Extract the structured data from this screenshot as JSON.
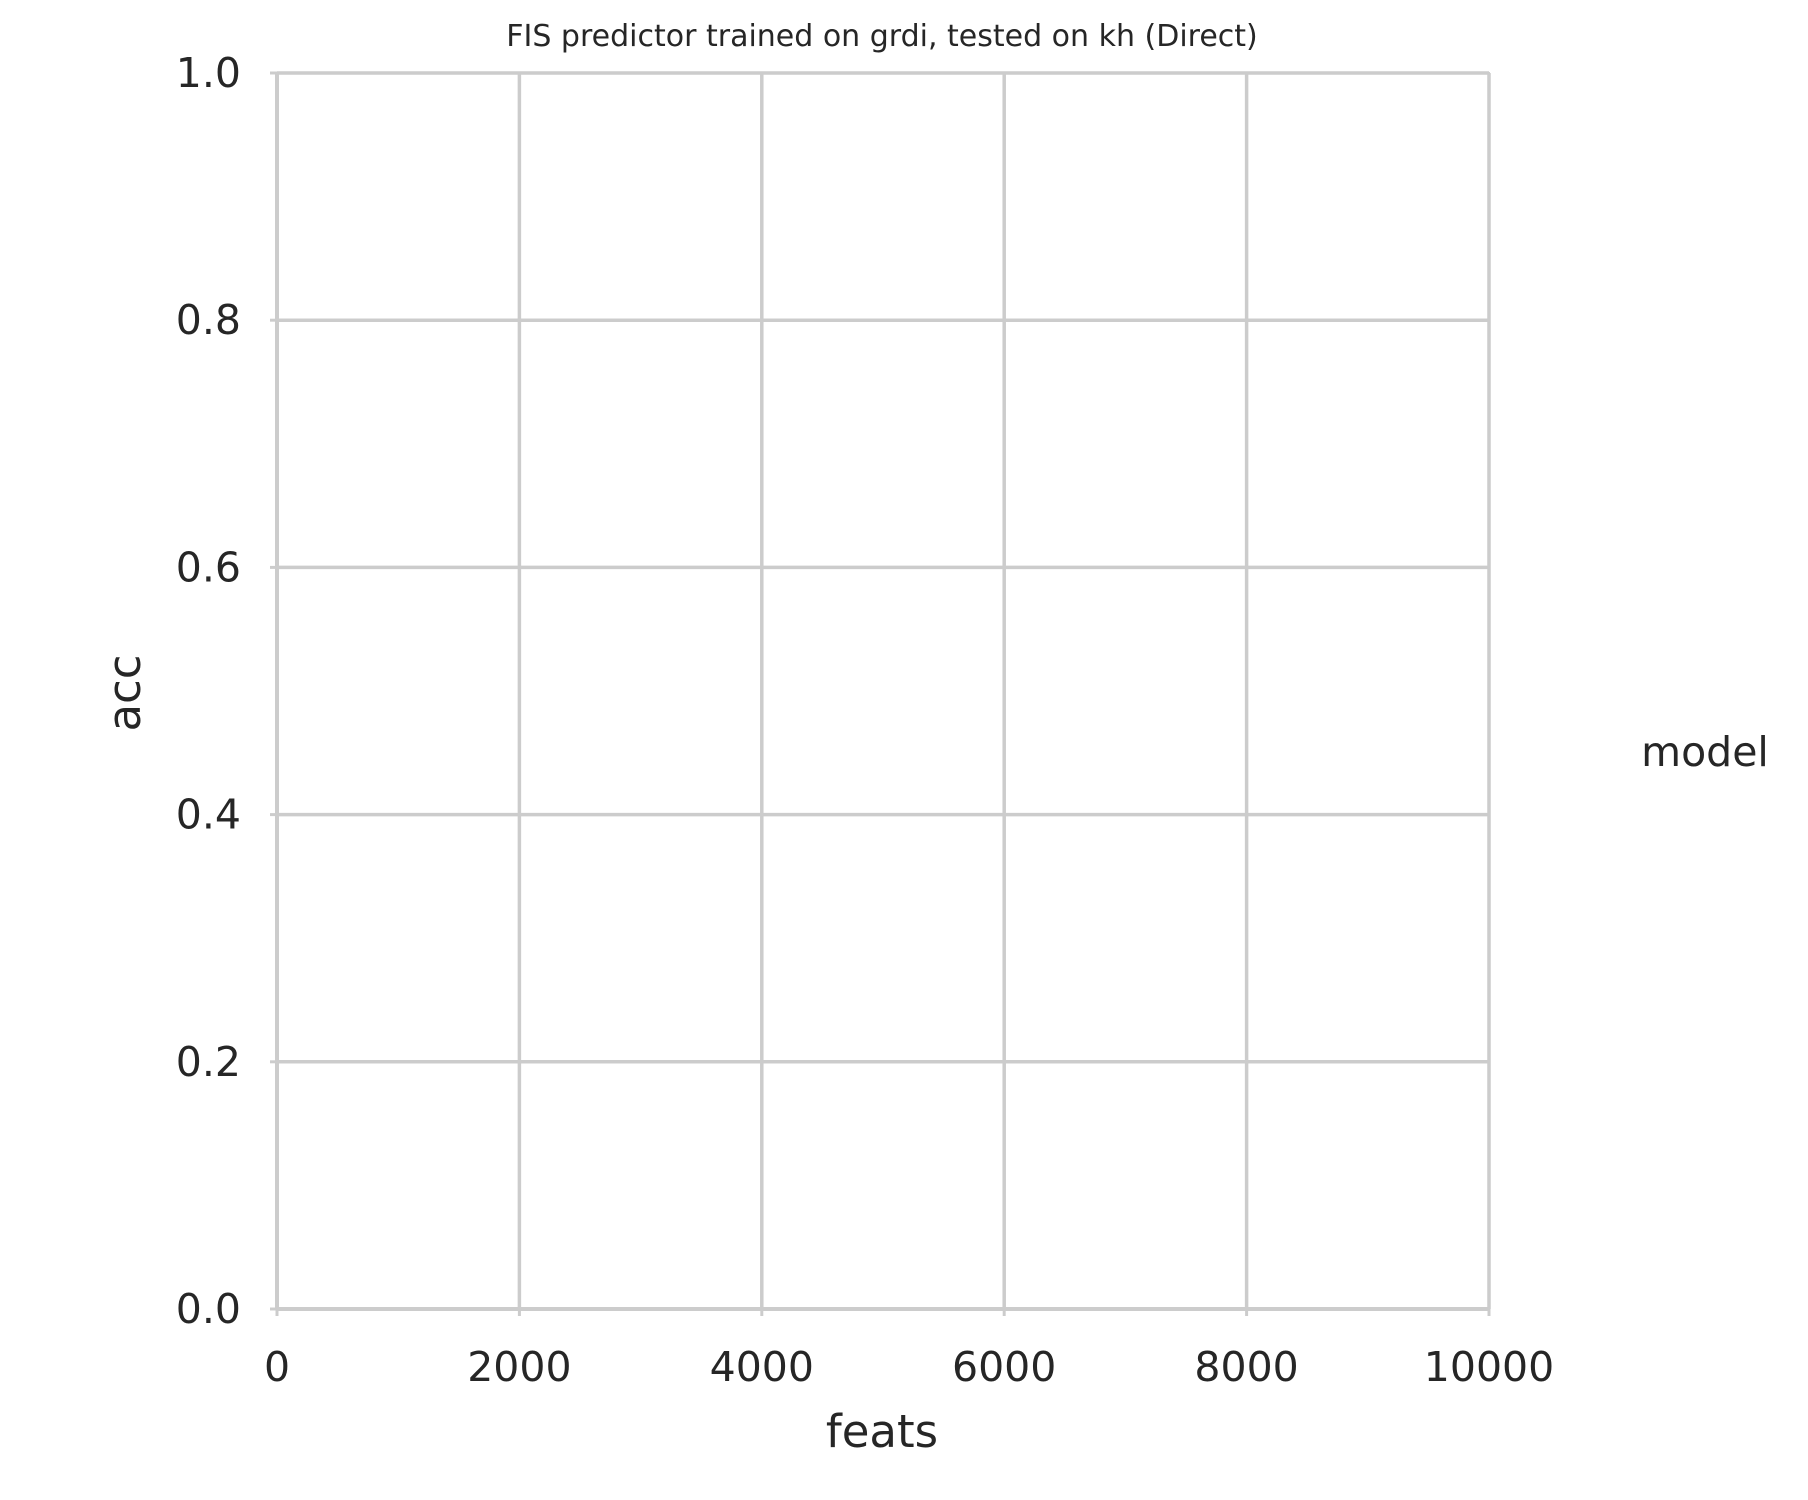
{
  "chart_data": {
    "type": "line",
    "title": "FIS predictor trained on grdi, tested on kh (Direct)",
    "xlabel": "feats",
    "ylabel": "acc",
    "xlim": [
      0,
      10000
    ],
    "ylim": [
      0.0,
      1.0
    ],
    "xticks": [
      0,
      2000,
      4000,
      6000,
      8000,
      10000
    ],
    "xtick_labels": [
      "0",
      "2000",
      "4000",
      "6000",
      "8000",
      "10000"
    ],
    "yticks": [
      0.0,
      0.2,
      0.4,
      0.6,
      0.8,
      1.0
    ],
    "ytick_labels": [
      "0.0",
      "0.2",
      "0.4",
      "0.6",
      "0.8",
      "1.0"
    ],
    "grid": true,
    "legend": {
      "title": "model",
      "placement": "right",
      "entries": []
    },
    "series": [],
    "colors": {
      "grid": "#cccccc",
      "text": "#262626",
      "background": "#ffffff"
    }
  }
}
